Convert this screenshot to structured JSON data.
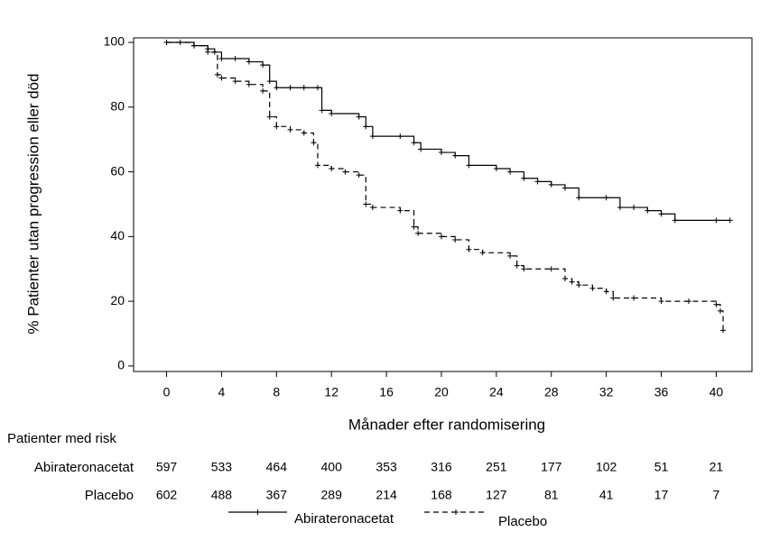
{
  "chart_data": {
    "type": "step",
    "y_label": "% Patienter utan progression eller död",
    "x_label": "Månader efter randomisering",
    "xlim": [
      -2.4,
      42.6
    ],
    "ylim": [
      -1.7,
      101.4
    ],
    "xticks": [
      0,
      4,
      8,
      12,
      16,
      20,
      24,
      28,
      32,
      36,
      40
    ],
    "yticks": [
      0,
      20,
      40,
      60,
      80,
      100
    ],
    "grid": false,
    "series": [
      {
        "name": "Abirateronacetat",
        "color": "#000000",
        "line_style": "solid",
        "x": [
          0,
          1,
          2,
          3,
          3.5,
          4,
          5,
          6,
          7,
          7.5,
          8,
          9,
          10,
          11,
          11.3,
          12,
          14,
          14.5,
          15,
          17,
          18,
          18.5,
          20,
          21,
          22,
          24,
          25,
          26,
          27,
          28,
          29,
          30,
          32,
          33,
          34,
          35,
          36,
          37,
          40,
          41
        ],
        "values": [
          100,
          100,
          99,
          98,
          97,
          95,
          95,
          94,
          93,
          88,
          86,
          86,
          86,
          86,
          79,
          78,
          77,
          74,
          71,
          71,
          69,
          67,
          66,
          65,
          62,
          61,
          60,
          58,
          57,
          56,
          55,
          52,
          52,
          49,
          49,
          48,
          47,
          45,
          45,
          45
        ]
      },
      {
        "name": "Placebo",
        "color": "#000000",
        "line_style": "dashed",
        "x": [
          0,
          2,
          3,
          3.7,
          4,
          5,
          6,
          7,
          7.5,
          8,
          9,
          10,
          10.7,
          11,
          12,
          13,
          14,
          14.5,
          15,
          17,
          18,
          18.3,
          20,
          21,
          22,
          23,
          25,
          25.5,
          26,
          28,
          29,
          29.5,
          30,
          31,
          32,
          32.5,
          34,
          36,
          38,
          40,
          40.3,
          40.5
        ],
        "values": [
          100,
          99,
          97,
          90,
          89,
          88,
          87,
          85,
          77,
          74,
          73,
          72,
          69,
          62,
          61,
          60,
          59,
          50,
          49,
          48,
          43,
          41,
          40,
          39,
          36,
          35,
          34,
          31,
          30,
          30,
          27,
          26,
          25,
          24,
          23,
          21,
          21,
          20,
          20,
          19,
          17,
          11
        ]
      }
    ]
  },
  "risk_table": {
    "title": "Patienter med risk",
    "rows": [
      {
        "label": "Abirateronacetat",
        "values": [
          597,
          533,
          464,
          400,
          353,
          316,
          251,
          177,
          102,
          51,
          21
        ]
      },
      {
        "label": "Placebo",
        "values": [
          602,
          488,
          367,
          289,
          214,
          168,
          127,
          81,
          41,
          17,
          7
        ]
      }
    ]
  }
}
